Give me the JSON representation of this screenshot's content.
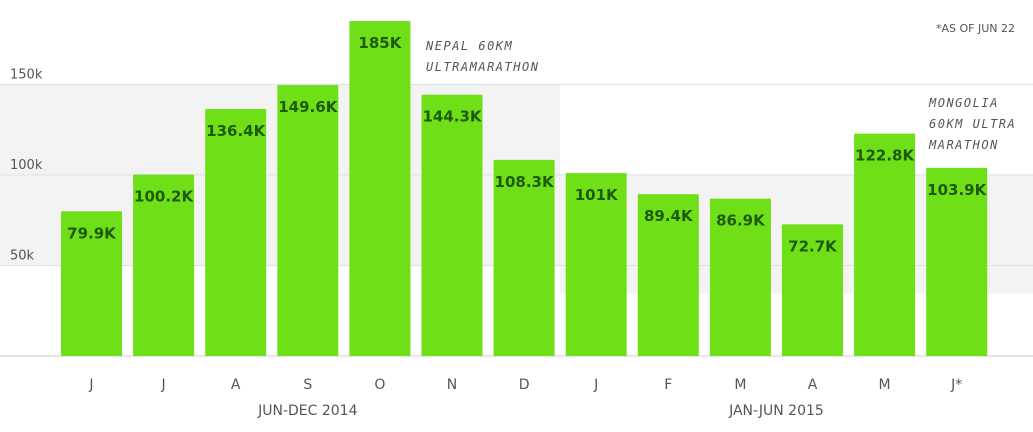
{
  "chart_data": {
    "type": "bar",
    "categories": [
      "J",
      "J",
      "A",
      "S",
      "O",
      "N",
      "D",
      "J",
      "F",
      "M",
      "A",
      "M",
      "J*"
    ],
    "values": [
      79.9,
      100.2,
      136.4,
      149.6,
      185,
      144.3,
      108.3,
      101,
      89.4,
      86.9,
      72.7,
      122.8,
      103.9
    ],
    "data_labels": [
      "79.9K",
      "100.2K",
      "136.4K",
      "149.6K",
      "185K",
      "144.3K",
      "108.3K",
      "101K",
      "89.4K",
      "86.9K",
      "72.7K",
      "122.8K",
      "103.9K"
    ],
    "yticks": [
      {
        "value": 50,
        "label": "50k"
      },
      {
        "value": 100,
        "label": "100k"
      },
      {
        "value": 150,
        "label": "150k"
      }
    ],
    "ylim": [
      0,
      185
    ],
    "groups": [
      {
        "label": "JUN-DEC 2014",
        "from": 0,
        "to": 6
      },
      {
        "label": "JAN-JUN 2015",
        "from": 7,
        "to": 12
      }
    ],
    "annotations": [
      {
        "bar": 4,
        "lines": [
          "NEPAL 60KM",
          "ULTRAMARATHON"
        ]
      },
      {
        "bar": 12,
        "lines": [
          "MONGOLIA",
          "60KM ULTRA",
          "MARATHON"
        ]
      }
    ],
    "footnote": "*AS OF JUN 22",
    "grid": true,
    "colors": {
      "bar": "#6fe018",
      "bar_label": "#1f5a0a",
      "band": "#f3f3f3",
      "grid": "#e0e0e0",
      "axis": "#cccccc"
    }
  }
}
